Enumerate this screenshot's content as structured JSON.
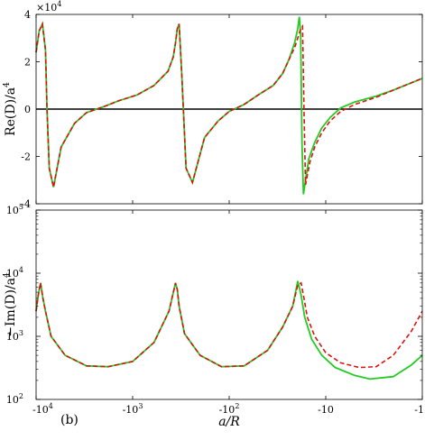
{
  "figure": {
    "panel_label": "(b)",
    "xlabel": "a/R",
    "top_exponent": "×10",
    "top_exponent_power": "4"
  },
  "colors": {
    "solid": "#22cc22",
    "dashed": "#dd1111",
    "zero_line": "#000000"
  },
  "chart_data": [
    {
      "type": "line",
      "panel": "top",
      "ylabel": "Re(D)/a^4",
      "ylabel_main": "Re(D)/a",
      "ylabel_power": "4",
      "xscale": "log (negative, reversed)",
      "xlim": [
        -10000,
        -1
      ],
      "ylim": [
        -4,
        4
      ],
      "yunit_multiplier": 10000,
      "yticks": [
        -4,
        -2,
        0,
        2,
        4
      ],
      "ytick_labels": [
        "-4",
        "-2",
        "0",
        "2",
        "4"
      ],
      "zero_line": true,
      "series": [
        {
          "style": "solid",
          "color": "#22cc22",
          "x": [
            -10000,
            -9300,
            -8600,
            -8000,
            -7700,
            -7300,
            -6600,
            -5500,
            -4000,
            -3000,
            -2000,
            -1400,
            -900,
            -600,
            -430,
            -380,
            -360,
            -345,
            -330,
            -310,
            -280,
            -240,
            -180,
            -130,
            -100,
            -70,
            -50,
            -35,
            -28,
            -24,
            -21,
            -19.5,
            -18.8,
            -18.2,
            -17.6,
            -17.0,
            -16.2,
            -15,
            -13,
            -11,
            -9,
            -7,
            -5,
            -3,
            -2,
            -1
          ],
          "y": [
            2.4,
            3.3,
            3.6,
            2.5,
            0.0,
            -2.5,
            -3.3,
            -1.6,
            -0.6,
            -0.15,
            0.1,
            0.35,
            0.6,
            1.0,
            1.6,
            2.2,
            2.8,
            3.4,
            3.6,
            1.5,
            -2.5,
            -3.1,
            -1.2,
            -0.5,
            -0.1,
            0.2,
            0.6,
            1.0,
            1.5,
            2.1,
            2.8,
            3.4,
            3.9,
            3.2,
            -1.5,
            -3.6,
            -3.0,
            -2.1,
            -1.4,
            -0.8,
            -0.35,
            0.05,
            0.3,
            0.55,
            0.8,
            1.3
          ]
        },
        {
          "style": "dashed",
          "color": "#dd1111",
          "x": [
            -10000,
            -9300,
            -8600,
            -8000,
            -7700,
            -7300,
            -6600,
            -5500,
            -4000,
            -3000,
            -2000,
            -1400,
            -900,
            -600,
            -430,
            -380,
            -360,
            -345,
            -330,
            -310,
            -280,
            -240,
            -180,
            -130,
            -100,
            -70,
            -50,
            -35,
            -28,
            -24,
            -21,
            -19.5,
            -18.2,
            -17.4,
            -16.8,
            -16.2,
            -15.5,
            -14.5,
            -13,
            -11,
            -9,
            -7,
            -5,
            -3,
            -2,
            -1
          ],
          "y": [
            2.4,
            3.3,
            3.6,
            2.5,
            0.0,
            -2.5,
            -3.3,
            -1.6,
            -0.6,
            -0.15,
            0.1,
            0.35,
            0.6,
            1.0,
            1.6,
            2.2,
            2.8,
            3.4,
            3.6,
            1.5,
            -2.5,
            -3.1,
            -1.2,
            -0.5,
            -0.1,
            0.2,
            0.6,
            1.0,
            1.5,
            2.1,
            2.6,
            3.0,
            3.4,
            3.5,
            0.0,
            -3.2,
            -2.8,
            -2.2,
            -1.6,
            -1.0,
            -0.5,
            -0.1,
            0.2,
            0.5,
            0.8,
            1.3
          ]
        }
      ]
    },
    {
      "type": "line",
      "panel": "bottom",
      "ylabel": "-Im(D)/a^4",
      "ylabel_main": "−Im(D)/a",
      "ylabel_power": "4",
      "xscale": "log (negative, reversed)",
      "yscale": "log",
      "xlim": [
        -10000,
        -1
      ],
      "ylim": [
        100,
        100000
      ],
      "yticks": [
        100,
        1000,
        10000,
        100000
      ],
      "ytick_labels": [
        {
          "base": "10",
          "exp": "2"
        },
        {
          "base": "10",
          "exp": "3"
        },
        {
          "base": "10",
          "exp": "4"
        },
        {
          "base": "10",
          "exp": "5"
        }
      ],
      "xticks": [
        -10000,
        -1000,
        -100,
        -10,
        -1
      ],
      "xtick_labels": [
        {
          "base": "-10",
          "exp": "4"
        },
        {
          "base": "-10",
          "exp": "3"
        },
        {
          "base": "-10",
          "exp": "2"
        },
        {
          "base": "-10",
          "exp": ""
        },
        {
          "base": "-1",
          "exp": ""
        }
      ],
      "series": [
        {
          "style": "solid",
          "color": "#22cc22",
          "x": [
            -10000,
            -9500,
            -9000,
            -8500,
            -8000,
            -7000,
            -5000,
            -3000,
            -1800,
            -1000,
            -600,
            -420,
            -360,
            -345,
            -330,
            -290,
            -200,
            -120,
            -70,
            -40,
            -28,
            -22,
            -19.5,
            -18,
            -16.5,
            -14,
            -11,
            -8,
            -5,
            -3.5,
            -2,
            -1.3,
            -1
          ],
          "y": [
            2500,
            4500,
            7000,
            4000,
            2500,
            1000,
            500,
            340,
            330,
            400,
            800,
            2500,
            7000,
            5500,
            3000,
            1100,
            500,
            330,
            340,
            600,
            1400,
            3000,
            7500,
            4500,
            2000,
            900,
            500,
            320,
            240,
            210,
            230,
            350,
            500
          ]
        },
        {
          "style": "dashed",
          "color": "#dd1111",
          "x": [
            -10000,
            -9500,
            -9000,
            -8500,
            -8000,
            -7000,
            -5000,
            -3000,
            -1800,
            -1000,
            -600,
            -420,
            -360,
            -345,
            -330,
            -290,
            -200,
            -120,
            -70,
            -40,
            -28,
            -22,
            -19.5,
            -18,
            -16.8,
            -15.5,
            -13,
            -10,
            -7,
            -4.5,
            -3,
            -2,
            -1.3,
            -1
          ],
          "y": [
            2500,
            4500,
            7000,
            4000,
            2500,
            1000,
            500,
            340,
            330,
            400,
            800,
            2500,
            7000,
            5500,
            3000,
            1100,
            500,
            330,
            340,
            600,
            1400,
            3000,
            6500,
            7000,
            4000,
            2000,
            1000,
            550,
            380,
            320,
            330,
            500,
            1200,
            2500
          ]
        }
      ]
    }
  ]
}
